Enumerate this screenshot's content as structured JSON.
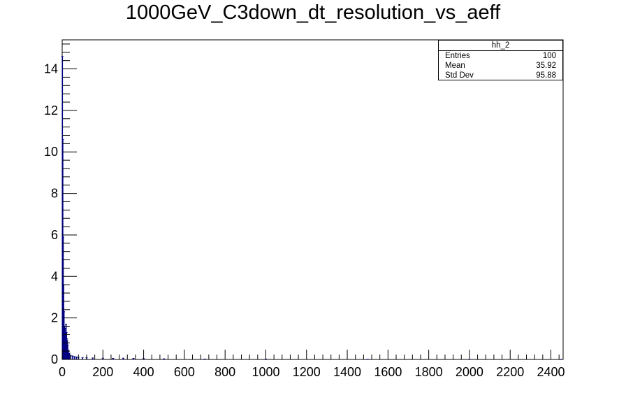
{
  "chart_data": {
    "type": "bar",
    "title": "1000GeV_C3down_dt_resolution_vs_aeff",
    "xlabel": "",
    "ylabel": "",
    "xlim": [
      0,
      2460
    ],
    "ylim": [
      0,
      15.4
    ],
    "x_ticks": [
      0,
      200,
      400,
      600,
      800,
      1000,
      1200,
      1400,
      1600,
      1800,
      2000,
      2200,
      2400
    ],
    "y_ticks": [
      0,
      2,
      4,
      6,
      8,
      10,
      12,
      14
    ],
    "bins": {
      "x": [
        1,
        3,
        5,
        7,
        9,
        11,
        13,
        15,
        17,
        19,
        21,
        23,
        25,
        27,
        30,
        35,
        40,
        50,
        60,
        70,
        80,
        100,
        120,
        150,
        200,
        250,
        300,
        350,
        400,
        500,
        700,
        1000,
        1500,
        2000,
        2450
      ],
      "values": [
        14.6,
        10.6,
        5.9,
        3.6,
        2.3,
        1.6,
        1.3,
        1.1,
        1.5,
        1.7,
        1.3,
        1.0,
        0.9,
        0.7,
        0.45,
        0.3,
        0.2,
        0.17,
        0.14,
        0.12,
        0.1,
        0.09,
        0.08,
        0.07,
        0.06,
        0.05,
        0.06,
        0.05,
        0.04,
        0.03,
        0.02,
        0.02,
        0.01,
        0.01,
        0.01
      ]
    },
    "line_color": "#000080",
    "grid": false,
    "legend": "top-right"
  },
  "stats": {
    "name": "hh_2",
    "rows": [
      {
        "label": "Entries",
        "value": "100"
      },
      {
        "label": "Mean",
        "value": "35.92"
      },
      {
        "label": "Std Dev",
        "value": "95.88"
      }
    ]
  }
}
